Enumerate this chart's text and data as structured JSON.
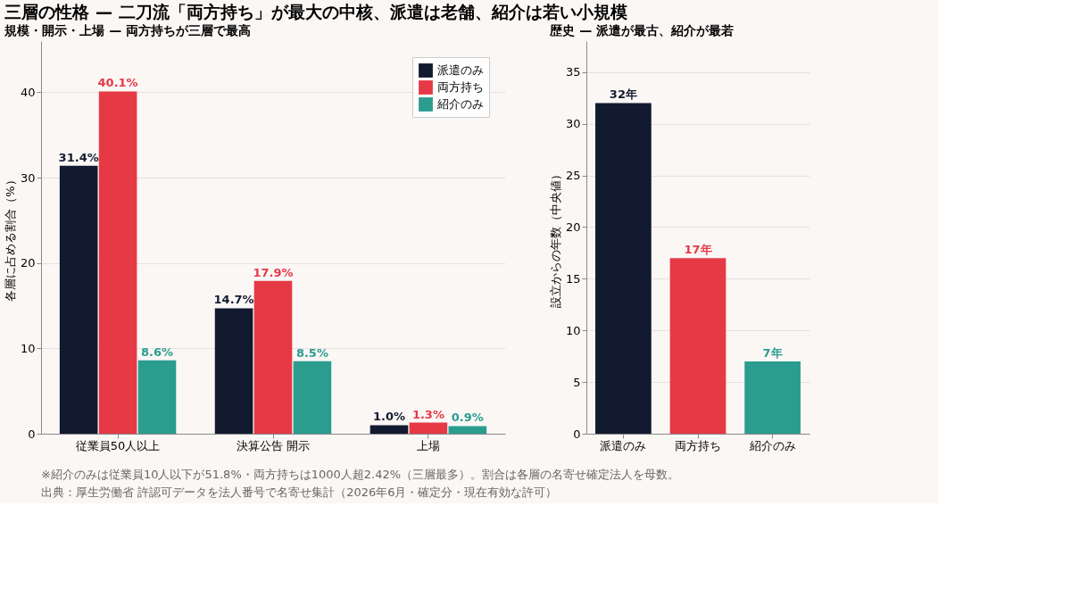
{
  "chart_data": [
    {
      "type": "bar",
      "title": "三層の性格 — 二刀流「両方持ち」が最大の中核、派遣は老舗、紹介は若い小規模",
      "subtitle": "規模・開示・上場 — 両方持ちが三層で最高",
      "categories": [
        "従業員50人以上",
        "決算公告 開示",
        "上場"
      ],
      "ylabel": "各層に占める割合（%）",
      "ylim": [
        0,
        46
      ],
      "yticks": [
        0,
        10,
        20,
        30,
        40
      ],
      "grid": "y",
      "legend": "top right",
      "series": [
        {
          "name": "派遣のみ",
          "color": "#111a2e",
          "values": [
            31.4,
            14.7,
            1.0
          ],
          "value_labels": [
            "31.4%",
            "14.7%",
            "1.0%"
          ]
        },
        {
          "name": "両方持ち",
          "color": "#e63946",
          "values": [
            40.1,
            17.9,
            1.3
          ],
          "value_labels": [
            "40.1%",
            "17.9%",
            "1.3%"
          ]
        },
        {
          "name": "紹介のみ",
          "color": "#2a9d8f",
          "values": [
            8.6,
            8.5,
            0.9
          ],
          "value_labels": [
            "8.6%",
            "8.5%",
            "0.9%"
          ]
        }
      ],
      "annotations": [
        "※紹介のみは従業員10人以下が51.8%・両方持ちは1000人超2.42%（三層最多）。割合は各層の名寄せ確定法人を母数。",
        "出典：厚生労働省 許認可データを法人番号で名寄せ集計（2026年6月・確定分・現在有効な許可）"
      ]
    },
    {
      "type": "bar",
      "title": "歴史 — 派遣が最古、紹介が最若",
      "categories": [
        "派遣のみ",
        "両方持ち",
        "紹介のみ"
      ],
      "ylabel": "設立からの年数（中央値）",
      "ylim": [
        0,
        38
      ],
      "yticks": [
        0,
        5,
        10,
        15,
        20,
        25,
        30,
        35
      ],
      "grid": "y",
      "values": [
        32,
        17,
        7
      ],
      "colors": [
        "#111a2e",
        "#e63946",
        "#2a9d8f"
      ],
      "value_labels": [
        "32年",
        "17年",
        "7年"
      ]
    }
  ]
}
